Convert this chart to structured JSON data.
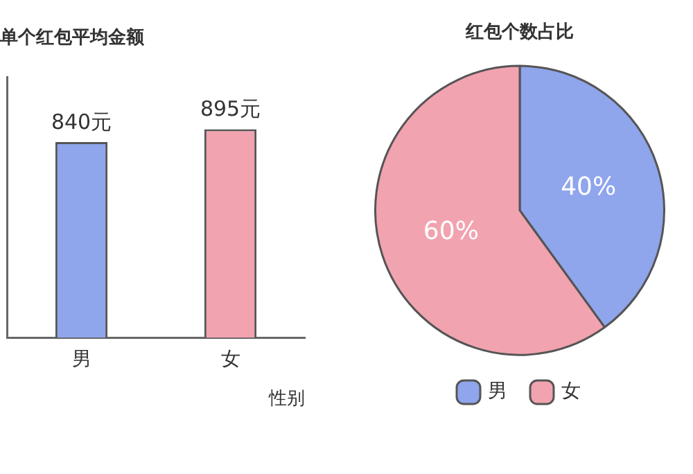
{
  "chart_data": [
    {
      "type": "bar",
      "title": "单个红包平均金额",
      "xlabel": "性别",
      "categories": [
        "男",
        "女"
      ],
      "values": [
        840,
        895
      ],
      "colors": [
        "#8fa5ec",
        "#f2a3b0"
      ],
      "value_labels": [
        "840元",
        "895元"
      ],
      "tick_labels": "x",
      "grid": false,
      "legend": false
    },
    {
      "type": "pie",
      "title": "红包个数占比",
      "categories": [
        "男",
        "女"
      ],
      "values": [
        40,
        60
      ],
      "colors": [
        "#8fa5ec",
        "#f2a3b0"
      ],
      "value_labels": [
        "40%",
        "60%"
      ],
      "legend": "bottom"
    }
  ]
}
